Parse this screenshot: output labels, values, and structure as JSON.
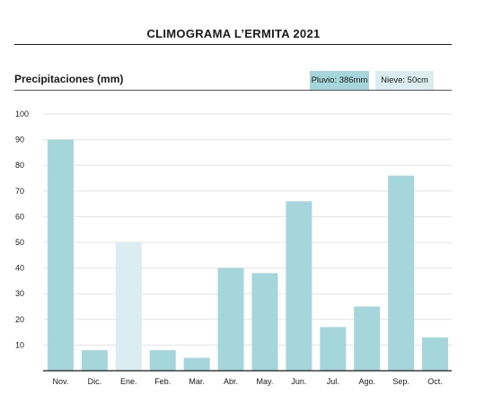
{
  "header": {
    "title": "CLIMOGRAMA L’ERMITA 2021",
    "subtitle": "Precipitaciones (mm)",
    "badge_pluvio": "Pluvio: 386mm",
    "badge_nieve": "Nieve: 50cm"
  },
  "colors": {
    "rain": "#a5d6dc",
    "snow": "#dcedf1",
    "grid": "#e3e3e3",
    "axis": "#1a1a1a"
  },
  "chart_data": {
    "type": "bar",
    "title": "CLIMOGRAMA L’ERMITA 2021",
    "ylabel": "Precipitaciones (mm)",
    "categories": [
      "Nov.",
      "Dic.",
      "Ene.",
      "Feb.",
      "Mar.",
      "Abr.",
      "May.",
      "Jun.",
      "Jul.",
      "Ago.",
      "Sep.",
      "Oct."
    ],
    "values": [
      90,
      8,
      50,
      8,
      5,
      40,
      38,
      66,
      17,
      25,
      76,
      13
    ],
    "kinds": [
      "pluvio",
      "pluvio",
      "nieve",
      "pluvio",
      "pluvio",
      "pluvio",
      "pluvio",
      "pluvio",
      "pluvio",
      "pluvio",
      "pluvio",
      "pluvio"
    ],
    "yticks": [
      "100",
      "90",
      "80",
      "70",
      "60",
      "50",
      "40",
      "30",
      "20",
      "10"
    ],
    "ylim": [
      0,
      100
    ],
    "grid": true
  }
}
